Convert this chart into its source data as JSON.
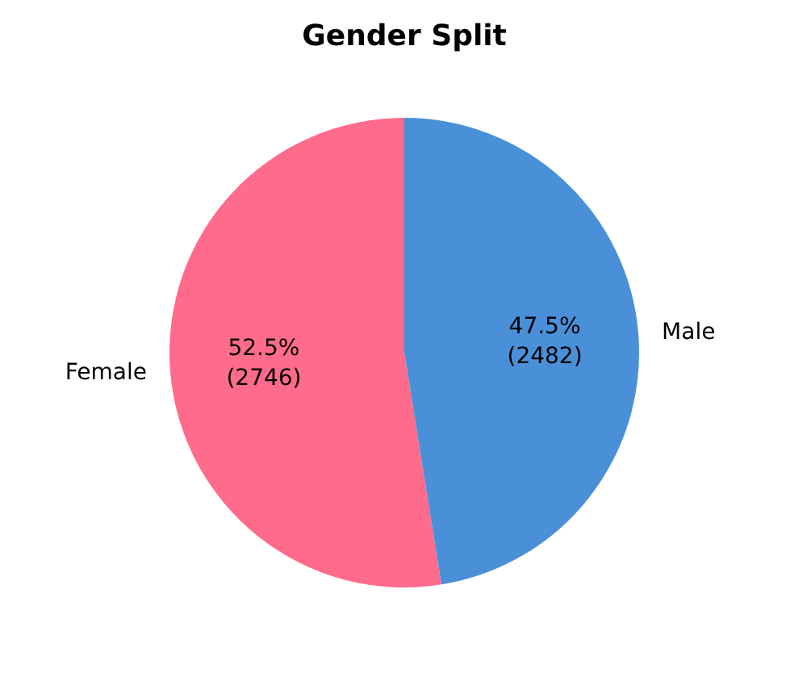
{
  "chart_data": {
    "type": "pie",
    "title": "Gender Split",
    "categories": [
      "Female",
      "Male"
    ],
    "values": [
      2746,
      2482
    ],
    "colors": [
      "#ff6b8a",
      "#4a90d9"
    ],
    "value_labels": [
      "52.5%\n(2746)",
      "47.5%\n(2482)"
    ]
  }
}
